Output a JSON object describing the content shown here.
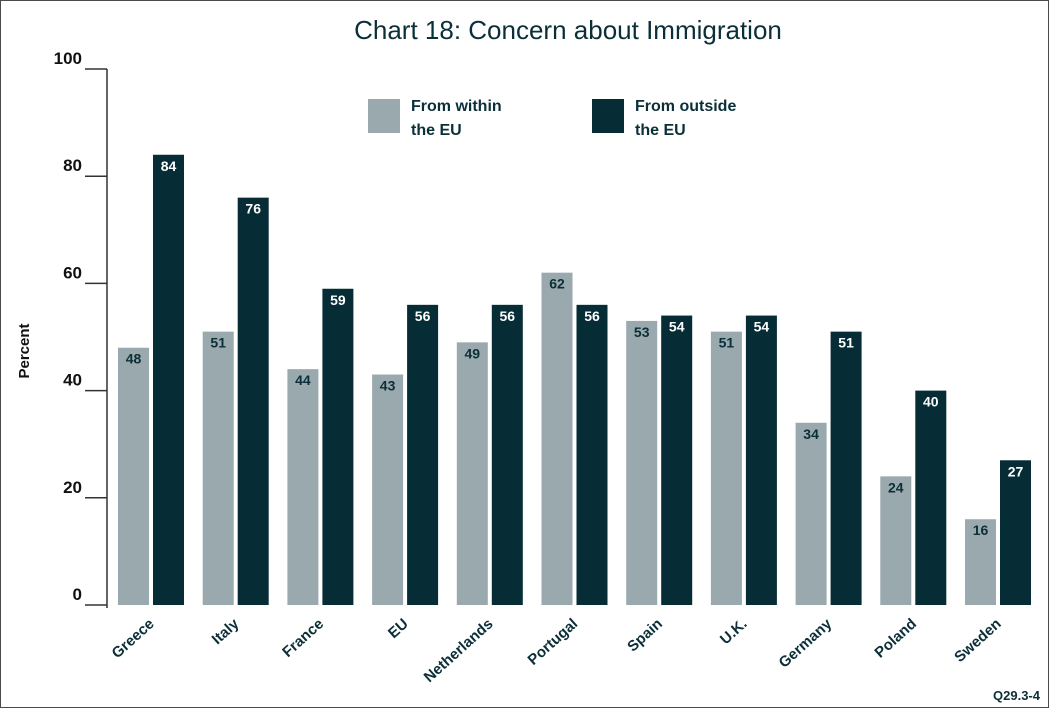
{
  "chart_data": {
    "type": "bar",
    "title": "Chart 18: Concern about Immigration",
    "ylabel": "Percent",
    "xlabel": "",
    "ylim": [
      0,
      100
    ],
    "yticks": [
      0,
      20,
      40,
      60,
      80,
      100
    ],
    "grid": false,
    "legend_position": "top-center",
    "categories": [
      "Greece",
      "Italy",
      "France",
      "EU",
      "Netherlands",
      "Portugal",
      "Spain",
      "U.K.",
      "Germany",
      "Poland",
      "Sweden"
    ],
    "series": [
      {
        "name": "From within the EU",
        "legend_lines": [
          "From within",
          "the EU"
        ],
        "color": "#9aa9ad",
        "values": [
          48,
          51,
          44,
          43,
          49,
          62,
          53,
          51,
          34,
          24,
          16
        ]
      },
      {
        "name": "From outside the EU",
        "legend_lines": [
          "From outside",
          "the EU"
        ],
        "color": "#062c36",
        "values": [
          84,
          76,
          59,
          56,
          56,
          56,
          54,
          54,
          51,
          40,
          27
        ]
      }
    ],
    "footnote": "Q29.3-4"
  }
}
